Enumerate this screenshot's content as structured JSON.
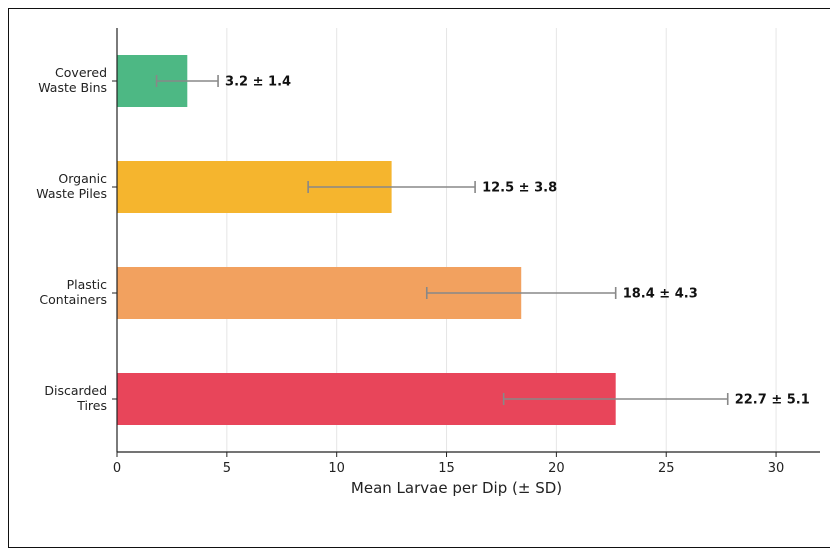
{
  "chart_data": {
    "type": "bar",
    "orientation": "horizontal",
    "categories": [
      [
        "Covered",
        "Waste Bins"
      ],
      [
        "Organic",
        "Waste Piles"
      ],
      [
        "Plastic",
        "Containers"
      ],
      [
        "Discarded",
        "Tires"
      ]
    ],
    "values": [
      3.2,
      12.5,
      18.4,
      22.7
    ],
    "errors": [
      1.4,
      3.8,
      4.3,
      5.1
    ],
    "data_labels": [
      "3.2 ± 1.4",
      "12.5 ± 3.8",
      "18.4 ± 4.3",
      "22.7 ± 5.1"
    ],
    "colors": [
      "#4db884",
      "#f5b52e",
      "#f2a15f",
      "#e8455a"
    ],
    "error_bar_color": "#888888",
    "xlabel": "Mean Larvae per Dip (± SD)",
    "ylabel": "",
    "title": "",
    "xlim": [
      0,
      32
    ],
    "xticks": [
      0,
      5,
      10,
      15,
      20,
      25,
      30
    ],
    "grid": "vertical"
  }
}
